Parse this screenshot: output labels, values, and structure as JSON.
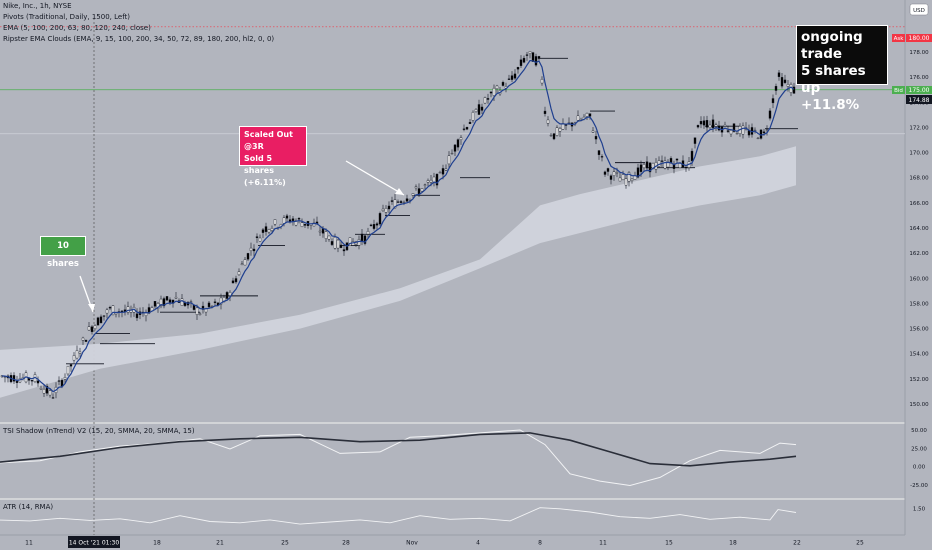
{
  "header": {
    "symbol_line": "Nike, Inc., 1h, NYSE",
    "pivots_line": "Pivots (Traditional, Daily, 1500, Left)",
    "ema_line": "EMA (5, 100, 200, 63, 80, 120, 240, close)",
    "ripster_line": "Ripster EMA Clouds (EMA, 9, 15, 100, 200, 34, 50, 72, 89, 180, 200, hl2, 0, 0)"
  },
  "price_panel": {
    "currency": "USD",
    "ask_label": "Ask",
    "ask_value": "180.00",
    "bid_label": "Bid",
    "bid_value": "175.00",
    "last_value": "174.88",
    "y_ticks": [
      "178.00",
      "176.00",
      "174.00",
      "172.00",
      "170.00",
      "168.00",
      "166.00",
      "164.00",
      "162.00",
      "160.00",
      "158.00",
      "156.00",
      "154.00",
      "152.00",
      "150.00"
    ]
  },
  "annotations": {
    "ten_shares": "10 shares",
    "scaled_out": [
      "Scaled Out @3R",
      "Sold 5 shares",
      "(+6.11%)"
    ],
    "ongoing": [
      "ongoing trade",
      "5 shares",
      "up +11.8%"
    ]
  },
  "tsi_panel": {
    "title": "TSI Shadow (nTrend) V2 (15, 20, SMMA, 20, SMMA, 15)",
    "y_ticks": [
      "50.00",
      "25.00",
      "0.00",
      "-25.00"
    ]
  },
  "atr_panel": {
    "title": "ATR (14, RMA)",
    "y_ticks": [
      "1.50"
    ]
  },
  "x_axis": {
    "ticks": [
      "11",
      "18",
      "21",
      "25",
      "28",
      "Nov",
      "4",
      "8",
      "11",
      "15",
      "18",
      "22",
      "25"
    ],
    "crosshair_label": "14 Oct '21  01:30"
  },
  "colors": {
    "background": "#b2b5be",
    "up_candle": "#ffffff",
    "down_candle": "#000000",
    "ema_line": "#1f3f8f",
    "cloud": "#d1d4dc",
    "ask": "#f23645",
    "bid": "#4caf50",
    "ten_shares_box": "#43a047",
    "scaled_out_box": "#e91e63",
    "ongoing_box": "#0b0b0b"
  },
  "chart_data": {
    "type": "candlestick",
    "ylim": [
      148.5,
      180.5
    ],
    "key_levels": {
      "entry_area": 155.0,
      "stop_loss": 171.5,
      "ask_line": 180.0,
      "bid_line": 175.0
    },
    "price_path": [
      {
        "x": 0,
        "y": 152.2
      },
      {
        "x": 35,
        "y": 152.0
      },
      {
        "x": 52,
        "y": 150.6
      },
      {
        "x": 68,
        "y": 152.6
      },
      {
        "x": 90,
        "y": 156.0
      },
      {
        "x": 110,
        "y": 157.5
      },
      {
        "x": 140,
        "y": 157.2
      },
      {
        "x": 175,
        "y": 158.5
      },
      {
        "x": 200,
        "y": 157.3
      },
      {
        "x": 225,
        "y": 158.2
      },
      {
        "x": 245,
        "y": 161.5
      },
      {
        "x": 265,
        "y": 164.0
      },
      {
        "x": 290,
        "y": 164.7
      },
      {
        "x": 315,
        "y": 164.2
      },
      {
        "x": 340,
        "y": 162.5
      },
      {
        "x": 365,
        "y": 163.2
      },
      {
        "x": 390,
        "y": 165.8
      },
      {
        "x": 410,
        "y": 166.6
      },
      {
        "x": 440,
        "y": 168.0
      },
      {
        "x": 465,
        "y": 172.0
      },
      {
        "x": 490,
        "y": 174.5
      },
      {
        "x": 512,
        "y": 175.8
      },
      {
        "x": 527,
        "y": 177.8
      },
      {
        "x": 540,
        "y": 177.2
      },
      {
        "x": 545,
        "y": 173.5
      },
      {
        "x": 552,
        "y": 171.3
      },
      {
        "x": 575,
        "y": 172.5
      },
      {
        "x": 590,
        "y": 172.8
      },
      {
        "x": 605,
        "y": 168.5
      },
      {
        "x": 625,
        "y": 167.8
      },
      {
        "x": 645,
        "y": 168.8
      },
      {
        "x": 670,
        "y": 169.2
      },
      {
        "x": 690,
        "y": 169.0
      },
      {
        "x": 700,
        "y": 172.5
      },
      {
        "x": 725,
        "y": 172.0
      },
      {
        "x": 765,
        "y": 171.4
      },
      {
        "x": 778,
        "y": 176.0
      },
      {
        "x": 788,
        "y": 175.3
      },
      {
        "x": 796,
        "y": 174.9
      }
    ],
    "cloud_upper": [
      {
        "x": 0,
        "y": 154.3
      },
      {
        "x": 100,
        "y": 154.8
      },
      {
        "x": 200,
        "y": 155.6
      },
      {
        "x": 300,
        "y": 157.1
      },
      {
        "x": 400,
        "y": 159.2
      },
      {
        "x": 480,
        "y": 161.5
      },
      {
        "x": 540,
        "y": 165.8
      },
      {
        "x": 580,
        "y": 166.7
      },
      {
        "x": 640,
        "y": 167.8
      },
      {
        "x": 700,
        "y": 168.9
      },
      {
        "x": 760,
        "y": 169.7
      },
      {
        "x": 796,
        "y": 170.5
      }
    ],
    "cloud_lower": [
      {
        "x": 0,
        "y": 150.5
      },
      {
        "x": 100,
        "y": 152.8
      },
      {
        "x": 200,
        "y": 154.3
      },
      {
        "x": 300,
        "y": 156.0
      },
      {
        "x": 400,
        "y": 158.2
      },
      {
        "x": 480,
        "y": 160.8
      },
      {
        "x": 540,
        "y": 162.8
      },
      {
        "x": 580,
        "y": 163.6
      },
      {
        "x": 640,
        "y": 164.8
      },
      {
        "x": 700,
        "y": 165.8
      },
      {
        "x": 760,
        "y": 166.6
      },
      {
        "x": 796,
        "y": 167.4
      }
    ],
    "pivot_segments": [
      {
        "x1": 66,
        "x2": 104,
        "y": 153.2
      },
      {
        "x1": 95,
        "x2": 130,
        "y": 155.6
      },
      {
        "x1": 100,
        "x2": 155,
        "y": 154.8
      },
      {
        "x1": 160,
        "x2": 200,
        "y": 157.3
      },
      {
        "x1": 200,
        "x2": 258,
        "y": 158.6
      },
      {
        "x1": 258,
        "x2": 285,
        "y": 162.6
      },
      {
        "x1": 340,
        "x2": 360,
        "y": 162.6
      },
      {
        "x1": 355,
        "x2": 385,
        "y": 163.5
      },
      {
        "x1": 385,
        "x2": 410,
        "y": 165.0
      },
      {
        "x1": 412,
        "x2": 440,
        "y": 166.6
      },
      {
        "x1": 460,
        "x2": 490,
        "y": 168.0
      },
      {
        "x1": 540,
        "x2": 568,
        "y": 177.5
      },
      {
        "x1": 590,
        "x2": 615,
        "y": 173.3
      },
      {
        "x1": 615,
        "x2": 645,
        "y": 169.2
      },
      {
        "x1": 648,
        "x2": 695,
        "y": 168.8
      },
      {
        "x1": 705,
        "x2": 740,
        "y": 172.1
      },
      {
        "x1": 765,
        "x2": 798,
        "y": 171.9
      }
    ],
    "tsi": {
      "ylim": [
        -35,
        55
      ],
      "shadow": [
        {
          "x": 0,
          "y": 5
        },
        {
          "x": 40,
          "y": 8
        },
        {
          "x": 80,
          "y": 20
        },
        {
          "x": 120,
          "y": 28
        },
        {
          "x": 160,
          "y": 32
        },
        {
          "x": 200,
          "y": 38
        },
        {
          "x": 230,
          "y": 24
        },
        {
          "x": 260,
          "y": 42
        },
        {
          "x": 300,
          "y": 44
        },
        {
          "x": 340,
          "y": 18
        },
        {
          "x": 380,
          "y": 20
        },
        {
          "x": 410,
          "y": 40
        },
        {
          "x": 440,
          "y": 42
        },
        {
          "x": 480,
          "y": 46
        },
        {
          "x": 520,
          "y": 50
        },
        {
          "x": 545,
          "y": 30
        },
        {
          "x": 570,
          "y": -10
        },
        {
          "x": 600,
          "y": -20
        },
        {
          "x": 630,
          "y": -26
        },
        {
          "x": 660,
          "y": -15
        },
        {
          "x": 690,
          "y": 8
        },
        {
          "x": 720,
          "y": 22
        },
        {
          "x": 760,
          "y": 18
        },
        {
          "x": 780,
          "y": 32
        },
        {
          "x": 796,
          "y": 30
        }
      ],
      "main": [
        {
          "x": 0,
          "y": 6
        },
        {
          "x": 60,
          "y": 14
        },
        {
          "x": 120,
          "y": 26
        },
        {
          "x": 180,
          "y": 34
        },
        {
          "x": 240,
          "y": 38
        },
        {
          "x": 300,
          "y": 40
        },
        {
          "x": 360,
          "y": 34
        },
        {
          "x": 420,
          "y": 36
        },
        {
          "x": 480,
          "y": 44
        },
        {
          "x": 530,
          "y": 46
        },
        {
          "x": 570,
          "y": 36
        },
        {
          "x": 610,
          "y": 20
        },
        {
          "x": 650,
          "y": 4
        },
        {
          "x": 690,
          "y": 1
        },
        {
          "x": 730,
          "y": 6
        },
        {
          "x": 770,
          "y": 10
        },
        {
          "x": 796,
          "y": 14
        }
      ]
    },
    "atr": {
      "ylim": [
        0.6,
        1.7
      ],
      "values": [
        {
          "x": 0,
          "y": 1.05
        },
        {
          "x": 30,
          "y": 1.02
        },
        {
          "x": 60,
          "y": 1.12
        },
        {
          "x": 90,
          "y": 1.04
        },
        {
          "x": 120,
          "y": 1.1
        },
        {
          "x": 150,
          "y": 0.95
        },
        {
          "x": 180,
          "y": 1.22
        },
        {
          "x": 210,
          "y": 1.0
        },
        {
          "x": 240,
          "y": 0.95
        },
        {
          "x": 270,
          "y": 1.06
        },
        {
          "x": 300,
          "y": 0.9
        },
        {
          "x": 330,
          "y": 0.98
        },
        {
          "x": 360,
          "y": 1.06
        },
        {
          "x": 390,
          "y": 0.95
        },
        {
          "x": 420,
          "y": 1.22
        },
        {
          "x": 450,
          "y": 1.08
        },
        {
          "x": 480,
          "y": 1.12
        },
        {
          "x": 510,
          "y": 1.02
        },
        {
          "x": 540,
          "y": 1.52
        },
        {
          "x": 560,
          "y": 1.48
        },
        {
          "x": 590,
          "y": 1.36
        },
        {
          "x": 620,
          "y": 1.18
        },
        {
          "x": 650,
          "y": 1.12
        },
        {
          "x": 680,
          "y": 1.26
        },
        {
          "x": 710,
          "y": 1.08
        },
        {
          "x": 740,
          "y": 1.16
        },
        {
          "x": 770,
          "y": 1.06
        },
        {
          "x": 778,
          "y": 1.45
        },
        {
          "x": 796,
          "y": 1.34
        }
      ]
    }
  }
}
